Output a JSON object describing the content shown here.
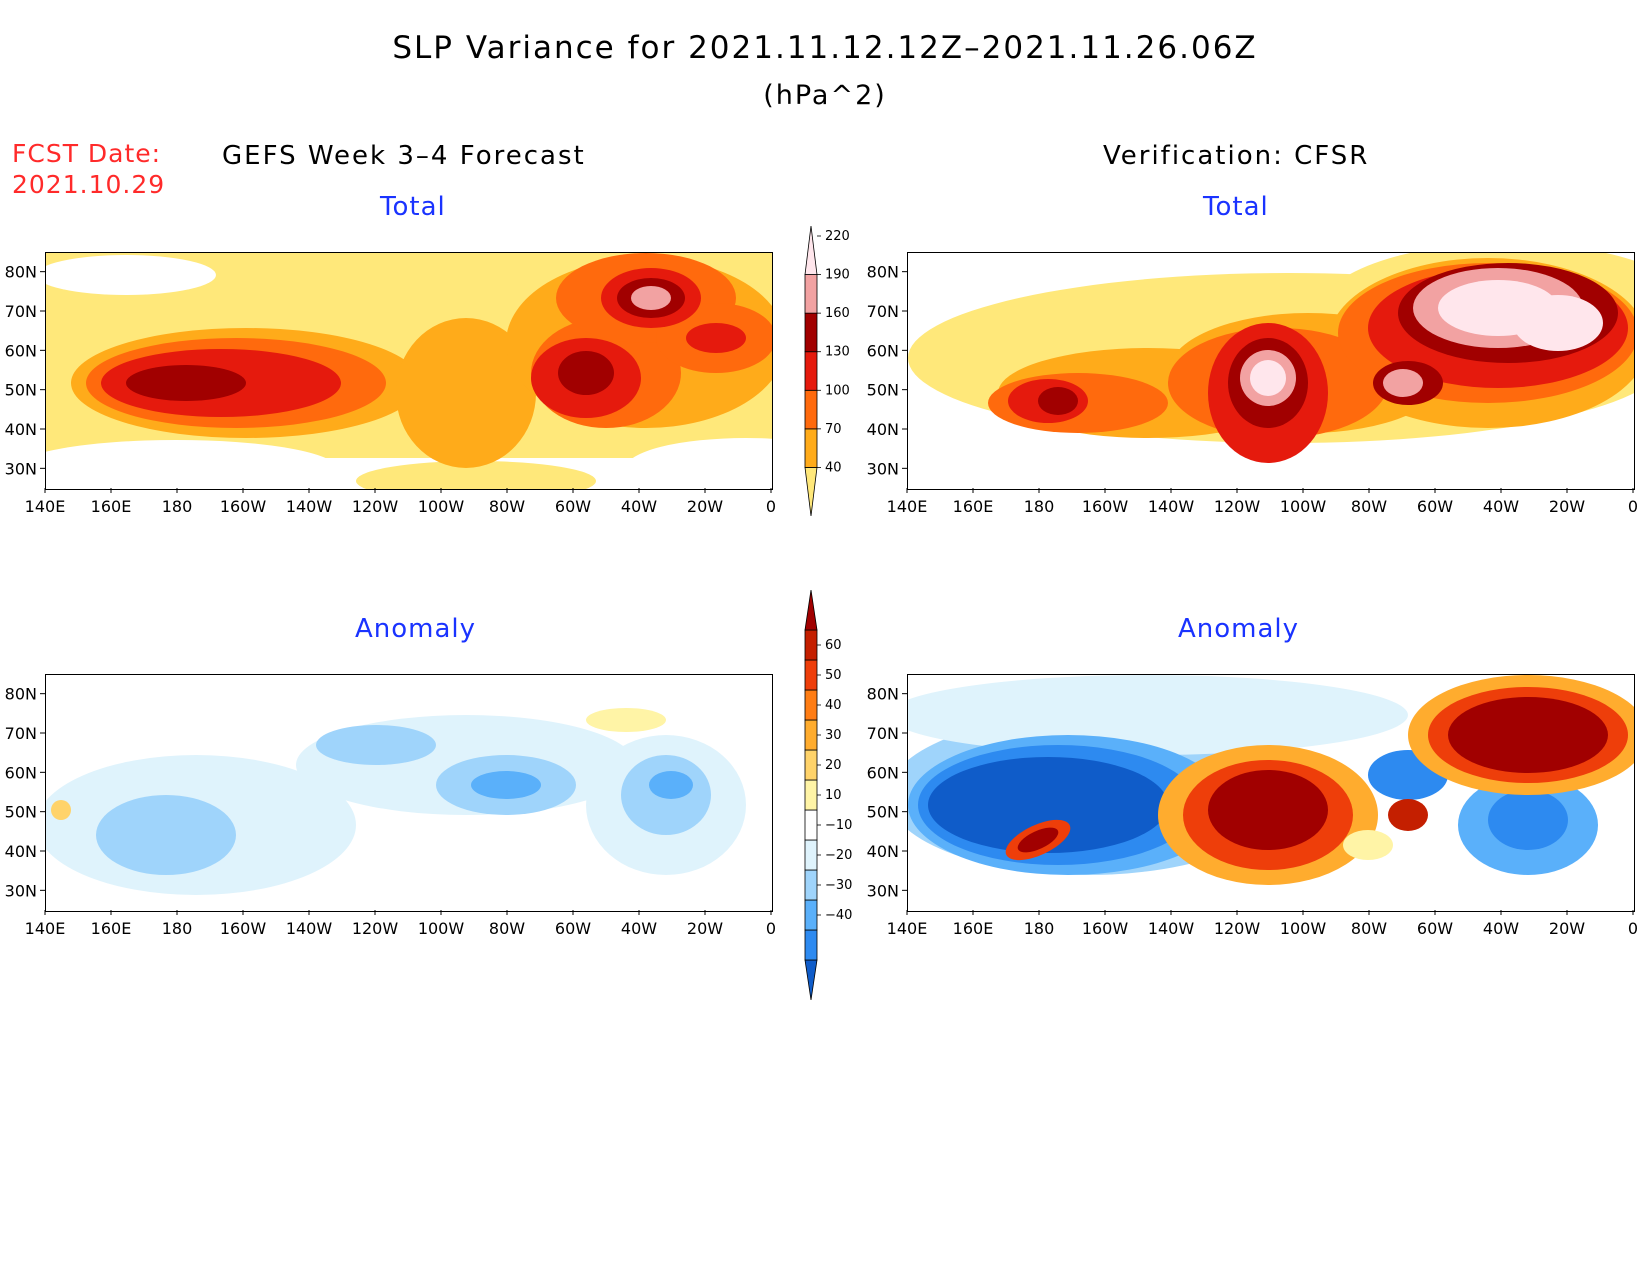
{
  "title": "SLP Variance for 2021.11.12.12Z–2021.11.26.06Z",
  "units": "(hPa^2)",
  "forecast_date": {
    "label": "FCST Date:",
    "value": "2021.10.29"
  },
  "columns": {
    "left": "GEFS Week 3–4 Forecast",
    "right": "Verification: CFSR"
  },
  "panels": [
    {
      "id": "fcst-total",
      "label": "Total",
      "field": "total",
      "source": "gefs"
    },
    {
      "id": "cfsr-total",
      "label": "Total",
      "field": "total",
      "source": "cfsr"
    },
    {
      "id": "fcst-anom",
      "label": "Anomaly",
      "field": "anomaly",
      "source": "gefs"
    },
    {
      "id": "cfsr-anom",
      "label": "Anomaly",
      "field": "anomaly",
      "source": "cfsr"
    }
  ],
  "axes": {
    "lon_ticks": [
      "140E",
      "160E",
      "180",
      "160W",
      "140W",
      "120W",
      "100W",
      "80W",
      "60W",
      "40W",
      "20W",
      "0"
    ],
    "lat_ticks": [
      "30N",
      "40N",
      "50N",
      "60N",
      "70N",
      "80N"
    ]
  },
  "colorbars": {
    "total": {
      "levels": [
        "40",
        "70",
        "100",
        "130",
        "160",
        "190",
        "220"
      ],
      "colors": [
        "#ffe87a",
        "#ffab1a",
        "#ff6a0d",
        "#e51a0d",
        "#a10000",
        "#f2a2a2",
        "#ffe6ec"
      ]
    },
    "anomaly": {
      "levels": [
        "−40",
        "−30",
        "−20",
        "−10",
        "10",
        "20",
        "30",
        "40",
        "50",
        "60"
      ],
      "colors": [
        "#0f5cc9",
        "#2d8af0",
        "#5ab0fa",
        "#9fd4fb",
        "#dff3fc",
        "#ffffff",
        "#fff4a6",
        "#ffd36a",
        "#ffac2e",
        "#ff7d14",
        "#ee3e0a",
        "#c41f00",
        "#a10000"
      ]
    }
  },
  "colors": {
    "title": "#000000",
    "panel_label": "#1a33ff",
    "forecast_date": "#ff2a2a"
  }
}
